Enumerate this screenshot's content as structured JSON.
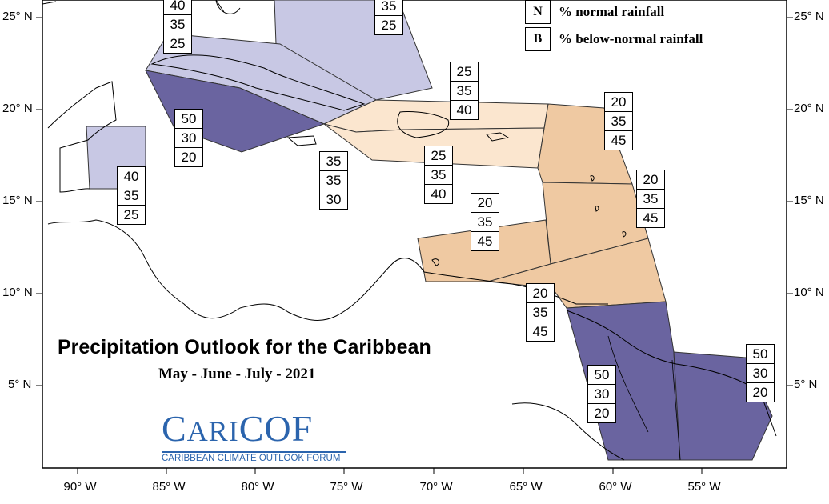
{
  "title": "Precipitation Outlook for the Caribbean",
  "subtitle": "May - June - July - 2021",
  "legend": [
    {
      "key": "N",
      "label": "% normal rainfall"
    },
    {
      "key": "B",
      "label": "% below-normal rainfall"
    }
  ],
  "latitude_labels": [
    "25° N",
    "20° N",
    "15° N",
    "10° N",
    "5° N"
  ],
  "longitude_labels": [
    "90° W",
    "85° W",
    "80° W",
    "75° W",
    "70° W",
    "65° W",
    "60° W",
    "55° W"
  ],
  "probability_boxes": [
    {
      "region": "florida-area",
      "values": [
        "40",
        "35",
        "25"
      ]
    },
    {
      "region": "bahamas",
      "values": [
        "35",
        "25"
      ]
    },
    {
      "region": "hispaniola-north",
      "values": [
        "25",
        "35",
        "40"
      ]
    },
    {
      "region": "cuba-south",
      "values": [
        "50",
        "30",
        "20"
      ]
    },
    {
      "region": "northern-leewards",
      "values": [
        "20",
        "35",
        "45"
      ]
    },
    {
      "region": "jamaica",
      "values": [
        "35",
        "35",
        "30"
      ]
    },
    {
      "region": "hispaniola-south",
      "values": [
        "25",
        "35",
        "40"
      ]
    },
    {
      "region": "belize",
      "values": [
        "40",
        "35",
        "25"
      ]
    },
    {
      "region": "windwards",
      "values": [
        "20",
        "35",
        "45"
      ]
    },
    {
      "region": "abc-islands",
      "values": [
        "20",
        "35",
        "45"
      ]
    },
    {
      "region": "trinidad",
      "values": [
        "20",
        "35",
        "45"
      ]
    },
    {
      "region": "guyana",
      "values": [
        "50",
        "30",
        "20"
      ]
    },
    {
      "region": "suriname-guiana",
      "values": [
        "50",
        "30",
        "20"
      ]
    }
  ],
  "region_colors": {
    "light_purple": "#c8c8e4",
    "dark_purple": "#6a64a0",
    "peach_light": "#fbe6cf",
    "peach": "#efc9a2"
  },
  "logo": {
    "name_prefix": "C",
    "name_mid": "ARI",
    "name_suffix": "COF",
    "tagline": "CARIBBEAN CLIMATE OUTLOOK FORUM"
  }
}
